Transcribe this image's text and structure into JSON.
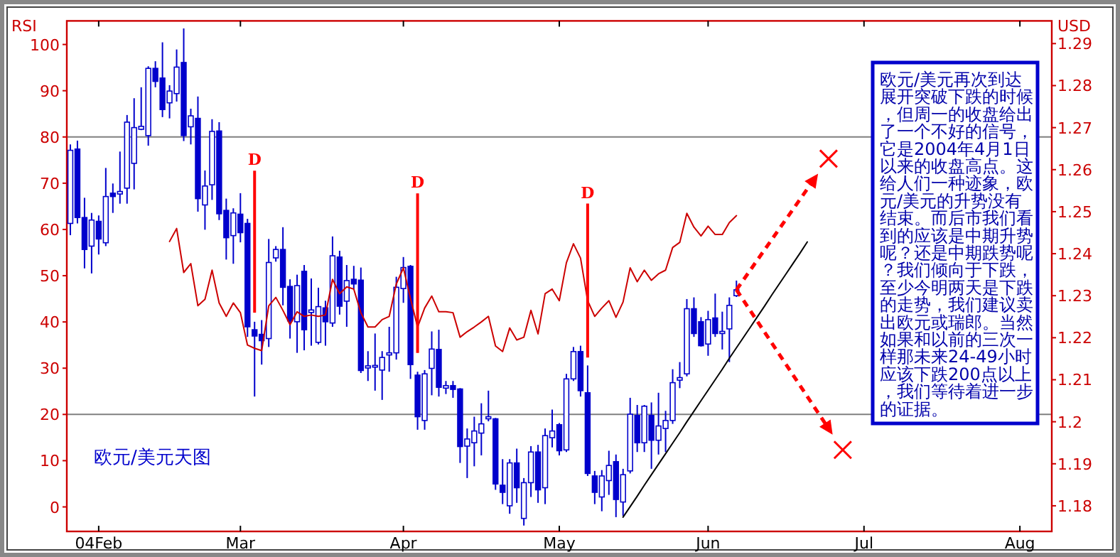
{
  "chart_data": {
    "type": "candlestick",
    "ylabel": "RSI",
    "y2label": "USD",
    "categories": [
      null,
      null,
      null,
      null,
      "04Feb",
      null,
      null,
      null,
      null,
      null,
      null,
      null,
      null,
      null,
      null,
      null,
      null,
      null,
      null,
      null,
      null,
      null,
      null,
      null,
      "Mar",
      null,
      null,
      null,
      null,
      null,
      null,
      null,
      null,
      null,
      null,
      null,
      null,
      null,
      null,
      null,
      null,
      null,
      null,
      null,
      null,
      null,
      null,
      "Apr",
      null,
      null,
      null,
      null,
      null,
      null,
      null,
      null,
      null,
      null,
      null,
      null,
      null,
      null,
      null,
      null,
      null,
      null,
      null,
      null,
      null,
      "May",
      null,
      null,
      null,
      null,
      null,
      null,
      null,
      null,
      null,
      null,
      null,
      null,
      null,
      null,
      null,
      null,
      null,
      null,
      null,
      null,
      "Jun",
      null,
      null,
      null,
      null,
      null,
      null,
      null,
      null,
      null,
      null,
      null,
      null,
      null,
      null,
      null,
      null,
      null,
      null,
      null,
      null,
      null,
      "Jul",
      null,
      null,
      null,
      null,
      null,
      null,
      null,
      null,
      null,
      null,
      null,
      null,
      null,
      null,
      null,
      null,
      null,
      null,
      null,
      null,
      null,
      "Aug",
      null,
      null,
      null,
      null
    ],
    "ylim": [
      -5.3,
      105.1
    ],
    "y2lim": [
      1.1739,
      1.2954
    ],
    "yticks": [
      0,
      10,
      20,
      30,
      40,
      50,
      60,
      70,
      80,
      90,
      100
    ],
    "y2ticks": [
      1.18,
      1.19,
      1.2,
      1.21,
      1.22,
      1.23,
      1.24,
      1.25,
      1.26,
      1.27,
      1.28,
      1.29
    ],
    "ref_lines": [
      {
        "axis": "y",
        "value": 80,
        "color": "#808080"
      },
      {
        "axis": "y",
        "value": 20,
        "color": "#808080"
      }
    ],
    "annotations": [
      "欧元/美元天图",
      "欧元/美元再次到达展开突破下跌的时候，但周一的收盘给出了一个不好的信号，它是2004年4月1日以来的收盘高点。这给人们一种迹象，欧元/美元的升势没有结束。而后市我们看到的应该是中期升势呢？还是中期跌势呢？我们倾向于下跌，至少今明两天是下跌的走势，我们建议卖出欧元或瑞郎。当然如果和以前的三次一样那未来24-49小时应该下跌200点以上，我们等待着进一步的证据。",
      "D",
      "D",
      "D"
    ],
    "series": [
      {
        "axis": "y2",
        "color": "#0000cc",
        "ohlc": [
          [
            1.2472,
            1.266,
            1.2444,
            1.2646
          ],
          [
            1.2649,
            1.2669,
            1.2472,
            1.2486
          ],
          [
            1.2486,
            1.2533,
            1.2365,
            1.241
          ],
          [
            1.2418,
            1.2497,
            1.2353,
            1.248
          ],
          [
            1.2477,
            1.2491,
            1.2398,
            1.2435
          ],
          [
            1.2426,
            1.2604,
            1.2418,
            1.2536
          ],
          [
            1.2544,
            1.2567,
            1.2497,
            1.2536
          ],
          [
            1.2542,
            1.2643,
            1.2519,
            1.2548
          ],
          [
            1.2556,
            1.273,
            1.2519,
            1.2713
          ],
          [
            1.2615,
            1.277,
            1.2553,
            1.27
          ],
          [
            1.2696,
            1.2796,
            1.2694,
            1.2703
          ],
          [
            1.2681,
            1.2846,
            1.2657,
            1.2841
          ],
          [
            1.2841,
            1.2858,
            1.2796,
            1.281
          ],
          [
            1.2818,
            1.2903,
            1.2725,
            1.2743
          ],
          [
            1.2759,
            1.2801,
            1.2722,
            1.2787
          ],
          [
            1.2781,
            1.2886,
            1.2762,
            1.2844
          ],
          [
            1.2855,
            1.2936,
            1.2668,
            1.2681
          ],
          [
            1.2702,
            1.2745,
            1.266,
            1.2728
          ],
          [
            1.2722,
            1.2774,
            1.25,
            1.2531
          ],
          [
            1.2516,
            1.2598,
            1.2457,
            1.2561
          ],
          [
            1.2564,
            1.272,
            1.2528,
            1.2691
          ],
          [
            1.2692,
            1.2713,
            1.248,
            1.2495
          ],
          [
            1.2503,
            1.2531,
            1.2386,
            1.2438
          ],
          [
            1.2443,
            1.2508,
            1.2376,
            1.2497
          ],
          [
            1.2494,
            1.2544,
            1.2427,
            1.245
          ],
          [
            1.2472,
            1.2483,
            1.2202,
            1.2226
          ],
          [
            1.2219,
            1.2238,
            1.206,
            1.2204
          ],
          [
            1.2208,
            1.2242,
            1.2136,
            1.2193
          ],
          [
            1.2198,
            1.2435,
            1.2178,
            1.2379
          ],
          [
            1.239,
            1.2418,
            1.2381,
            1.241
          ],
          [
            1.241,
            1.2463,
            1.2277,
            1.232
          ],
          [
            1.2322,
            1.2339,
            1.2198,
            1.224
          ],
          [
            1.2238,
            1.235,
            1.2164,
            1.2324
          ],
          [
            1.2358,
            1.2373,
            1.217,
            1.2219
          ],
          [
            1.226,
            1.2341,
            1.2181,
            1.2266
          ],
          [
            1.2189,
            1.2319,
            1.2184,
            1.2274
          ],
          [
            1.2271,
            1.2288,
            1.2181,
            1.2238
          ],
          [
            1.2235,
            1.2441,
            1.2226,
            1.2395
          ],
          [
            1.2392,
            1.2407,
            1.2255,
            1.2275
          ],
          [
            1.2287,
            1.2373,
            1.2226,
            1.2336
          ],
          [
            1.2339,
            1.2371,
            1.2314,
            1.2328
          ],
          [
            1.2337,
            1.2367,
            1.2116,
            1.2122
          ],
          [
            1.2128,
            1.2168,
            1.2097,
            1.2133
          ],
          [
            1.213,
            1.221,
            1.2074,
            1.2134
          ],
          [
            1.2123,
            1.2168,
            1.2052,
            1.2153
          ],
          [
            1.2159,
            1.2226,
            1.2119,
            1.2164
          ],
          [
            1.2164,
            1.2345,
            1.2148,
            1.232
          ],
          [
            1.2317,
            1.2392,
            1.2283,
            1.2367
          ],
          [
            1.237,
            1.2373,
            1.2102,
            1.2136
          ],
          [
            1.2111,
            1.2119,
            1.1981,
            1.2012
          ],
          [
            1.2003,
            1.2123,
            1.1981,
            1.2114
          ],
          [
            1.2127,
            1.2215,
            1.2063,
            1.2173
          ],
          [
            1.2172,
            1.2219,
            1.206,
            1.2082
          ],
          [
            1.208,
            1.2097,
            1.2066,
            1.2086
          ],
          [
            1.2086,
            1.2097,
            1.2057,
            1.2077
          ],
          [
            1.2078,
            1.208,
            1.1902,
            1.1941
          ],
          [
            1.1942,
            1.1984,
            1.1866,
            1.1959
          ],
          [
            1.195,
            1.2012,
            1.1894,
            1.1978
          ],
          [
            1.1973,
            1.2044,
            1.192,
            1.1995
          ],
          [
            1.2007,
            1.2074,
            1.2001,
            1.2012
          ],
          [
            1.2007,
            1.2009,
            1.1838,
            1.1852
          ],
          [
            1.1849,
            1.1911,
            1.1804,
            1.1832
          ],
          [
            1.18,
            1.1911,
            1.1781,
            1.1902
          ],
          [
            1.1902,
            1.1936,
            1.1807,
            1.1843
          ],
          [
            1.177,
            1.1866,
            1.1753,
            1.1855
          ],
          [
            1.1855,
            1.1942,
            1.1821,
            1.1928
          ],
          [
            1.1928,
            1.1945,
            1.1807,
            1.1838
          ],
          [
            1.1843,
            1.1984,
            1.1804,
            1.1967
          ],
          [
            1.1962,
            1.2029,
            1.1939,
            1.1978
          ],
          [
            1.1993,
            1.1997,
            1.192,
            1.1931
          ],
          [
            1.1933,
            1.2114,
            1.1928,
            1.2102
          ],
          [
            1.2102,
            1.2178,
            1.2097,
            1.2167
          ],
          [
            1.2167,
            1.2181,
            1.206,
            1.2074
          ],
          [
            1.2069,
            1.2134,
            1.1871,
            1.1877
          ],
          [
            1.1871,
            1.1883,
            1.1804,
            1.1832
          ],
          [
            1.1821,
            1.1885,
            1.1787,
            1.1871
          ],
          [
            1.186,
            1.1931,
            1.1826,
            1.1896
          ],
          [
            1.1905,
            1.1922,
            1.1773,
            1.1815
          ],
          [
            1.1809,
            1.1888,
            1.1776,
            1.1874
          ],
          [
            1.1883,
            1.2057,
            1.1877,
            1.2018
          ],
          [
            1.2015,
            1.204,
            1.1928,
            1.195
          ],
          [
            1.195,
            1.204,
            1.1928,
            1.2037
          ],
          [
            1.2015,
            1.2046,
            1.1888,
            1.1956
          ],
          [
            1.1956,
            1.2069,
            1.1922,
            1.199
          ],
          [
            1.1984,
            1.2026,
            1.1928,
            1.2003
          ],
          [
            1.2003,
            1.2125,
            1.1995,
            1.2093
          ],
          [
            1.2099,
            1.2142,
            1.208,
            1.2105
          ],
          [
            1.2114,
            1.2292,
            1.2108,
            1.2269
          ],
          [
            1.2269,
            1.2296,
            1.2202,
            1.221
          ],
          [
            1.2238,
            1.2249,
            1.2179,
            1.2181
          ],
          [
            1.2185,
            1.2264,
            1.2157,
            1.2243
          ],
          [
            1.2247,
            1.2305,
            1.2202,
            1.221
          ],
          [
            1.221,
            1.2262,
            1.2172,
            1.2215
          ],
          [
            1.2221,
            1.2296,
            1.2142,
            1.2277
          ],
          [
            1.23,
            1.2336,
            1.2297,
            1.2314
          ],
          null,
          null,
          null,
          null,
          null,
          null,
          null,
          null,
          null,
          null,
          null,
          null,
          null,
          null,
          null,
          null,
          null,
          null,
          null,
          null,
          null,
          null,
          null,
          null,
          null,
          null,
          null,
          null,
          null,
          null,
          null,
          null,
          null,
          null,
          null,
          null,
          null,
          null,
          null,
          null,
          null,
          null,
          null,
          null
        ]
      },
      {
        "type": "line",
        "axis": "y",
        "color": "#cc0000",
        "values": [
          null,
          null,
          null,
          null,
          null,
          null,
          null,
          null,
          null,
          null,
          null,
          null,
          null,
          null,
          57.4,
          60.2,
          50.7,
          52.6,
          43.5,
          44.9,
          51.2,
          44.1,
          41.2,
          44.1,
          42.0,
          35.0,
          34.3,
          33.8,
          43.5,
          45.3,
          42.5,
          39.4,
          42.2,
          41.2,
          41.5,
          41.2,
          41.5,
          49.2,
          46.1,
          47.6,
          47.1,
          42.0,
          38.9,
          38.9,
          40.5,
          41.2,
          48.2,
          51.7,
          45.1,
          38.9,
          43.0,
          45.6,
          42.2,
          42.2,
          42.0,
          36.7,
          37.9,
          38.9,
          40.0,
          41.2,
          34.8,
          33.6,
          38.7,
          36.1,
          36.7,
          42.5,
          37.4,
          46.1,
          47.1,
          44.6,
          52.8,
          56.9,
          53.8,
          44.6,
          41.2,
          43.0,
          44.6,
          41.0,
          44.3,
          51.7,
          48.7,
          51.2,
          49.0,
          50.4,
          51.2,
          56.1,
          57.2,
          63.5,
          60.5,
          58.6,
          60.7,
          58.9,
          58.9,
          61.5,
          63.0,
          null,
          null,
          null,
          null,
          null,
          null,
          null,
          null,
          null,
          null,
          null,
          null,
          null,
          null,
          null,
          null,
          null,
          null,
          null,
          null,
          null,
          null,
          null,
          null,
          null,
          null,
          null,
          null,
          null,
          null,
          null,
          null,
          null,
          null,
          null,
          null,
          null,
          null,
          null,
          null,
          null,
          null,
          null,
          null
        ]
      },
      {
        "type": "bar",
        "axis": "y",
        "color": "#ff0000",
        "base": [
          null,
          null,
          null,
          null,
          null,
          null,
          null,
          null,
          null,
          null,
          null,
          null,
          null,
          null,
          null,
          null,
          null,
          null,
          null,
          null,
          null,
          null,
          null,
          null,
          null,
          null,
          42,
          null,
          null,
          null,
          null,
          null,
          null,
          null,
          null,
          null,
          null,
          null,
          null,
          null,
          null,
          null,
          null,
          null,
          null,
          null,
          null,
          null,
          null,
          33.3,
          null,
          null,
          null,
          null,
          null,
          null,
          null,
          null,
          null,
          null,
          null,
          null,
          null,
          null,
          null,
          null,
          null,
          null,
          null,
          null,
          null,
          null,
          null,
          32.3,
          null,
          null,
          null,
          null,
          null,
          null,
          null,
          null,
          null,
          null,
          null,
          null,
          null,
          null,
          null,
          null,
          null,
          null,
          null,
          null,
          null,
          null,
          null,
          null,
          null,
          null,
          null,
          null,
          null,
          null,
          null,
          null,
          null,
          null,
          null,
          null,
          null,
          null,
          null,
          null,
          null,
          null,
          null,
          null,
          null,
          null,
          null,
          null,
          null,
          null,
          null,
          null,
          null,
          null,
          null,
          null,
          null,
          null,
          null,
          null,
          null,
          null,
          null,
          null,
          null
        ],
        "values": [
          null,
          null,
          null,
          null,
          null,
          null,
          null,
          null,
          null,
          null,
          null,
          null,
          null,
          null,
          null,
          null,
          null,
          null,
          null,
          null,
          null,
          null,
          null,
          null,
          null,
          null,
          30.7,
          null,
          null,
          null,
          null,
          null,
          null,
          null,
          null,
          null,
          null,
          null,
          null,
          null,
          null,
          null,
          null,
          null,
          null,
          null,
          null,
          null,
          null,
          34.5,
          null,
          null,
          null,
          null,
          null,
          null,
          null,
          null,
          null,
          null,
          null,
          null,
          null,
          null,
          null,
          null,
          null,
          null,
          null,
          null,
          null,
          null,
          null,
          33.3,
          null,
          null,
          null,
          null,
          null,
          null,
          null,
          null,
          null,
          null,
          null,
          null,
          null,
          null,
          null,
          null,
          null,
          null,
          null,
          null,
          null,
          null,
          null,
          null,
          null,
          null,
          null,
          null,
          null,
          null,
          null,
          null,
          null,
          null,
          null,
          null,
          null,
          null,
          null,
          null,
          null,
          null,
          null,
          null,
          null,
          null,
          null,
          null,
          null,
          null,
          null,
          null,
          null,
          null,
          null,
          null,
          null,
          null,
          null,
          null,
          null,
          null,
          null,
          null,
          null
        ]
      },
      {
        "type": "line",
        "axis": "y2",
        "color": "#000000",
        "values": [
          null,
          null,
          null,
          null,
          null,
          null,
          null,
          null,
          null,
          null,
          null,
          null,
          null,
          null,
          null,
          null,
          null,
          null,
          null,
          null,
          null,
          null,
          null,
          null,
          null,
          null,
          null,
          null,
          null,
          null,
          null,
          null,
          null,
          null,
          null,
          null,
          null,
          null,
          null,
          null,
          null,
          null,
          null,
          null,
          null,
          null,
          null,
          null,
          null,
          null,
          null,
          null,
          null,
          null,
          null,
          null,
          null,
          null,
          null,
          null,
          null,
          null,
          null,
          null,
          null,
          null,
          null,
          null,
          null,
          null,
          null,
          null,
          null,
          null,
          null,
          null,
          null,
          null,
          1.1773,
          1.1798,
          1.1823,
          1.1849,
          1.1874,
          1.1899,
          1.1924,
          1.1949,
          1.1974,
          1.2,
          1.2025,
          1.205,
          1.2075,
          1.21,
          1.2125,
          1.2151,
          1.2176,
          1.2201,
          1.2226,
          1.2251,
          1.2276,
          1.2302,
          1.2327,
          1.2352,
          1.2377,
          1.2402,
          1.2428,
          null,
          null,
          null,
          null,
          null,
          null,
          null,
          null,
          null,
          null,
          null,
          null,
          null,
          null,
          null,
          null,
          null,
          null,
          null,
          null,
          null,
          null,
          null,
          null,
          null,
          null,
          null,
          null,
          null,
          null,
          null,
          null,
          null,
          null
        ]
      },
      {
        "type": "scatter",
        "axis": "y2",
        "color": "#ff0000",
        "marker": "cross",
        "values": [
          null,
          null,
          null,
          null,
          null,
          null,
          null,
          null,
          null,
          null,
          null,
          null,
          null,
          null,
          null,
          null,
          null,
          null,
          null,
          null,
          null,
          null,
          null,
          null,
          null,
          null,
          null,
          null,
          null,
          null,
          null,
          null,
          null,
          null,
          null,
          null,
          null,
          null,
          null,
          null,
          null,
          null,
          null,
          null,
          null,
          null,
          null,
          null,
          null,
          null,
          null,
          null,
          null,
          null,
          null,
          null,
          null,
          null,
          null,
          null,
          null,
          null,
          null,
          null,
          null,
          null,
          null,
          null,
          null,
          null,
          null,
          null,
          null,
          null,
          null,
          null,
          null,
          null,
          null,
          null,
          null,
          null,
          null,
          null,
          null,
          null,
          null,
          null,
          null,
          null,
          null,
          null,
          null,
          null,
          null,
          null,
          null,
          null,
          null,
          null,
          null,
          null,
          null,
          null,
          null,
          null,
          null,
          1.2626,
          null,
          1.1933,
          null,
          null,
          null,
          null,
          null,
          null,
          null,
          null,
          null,
          null,
          null,
          null,
          null,
          null,
          null,
          null,
          null,
          null,
          null,
          null,
          null,
          null,
          null,
          null,
          null,
          null,
          null,
          null,
          null
        ]
      }
    ]
  }
}
